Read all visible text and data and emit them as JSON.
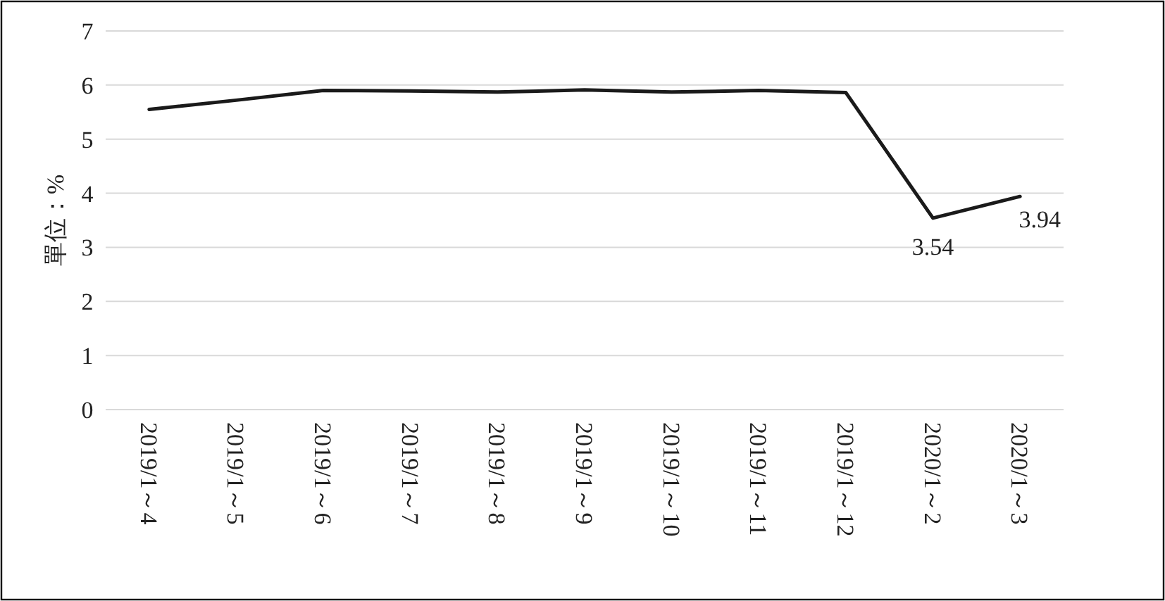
{
  "chart_data": {
    "type": "line",
    "ylabel": "單位：%",
    "categories": [
      "2019/1～4",
      "2019/1～5",
      "2019/1～6",
      "2019/1～7",
      "2019/1～8",
      "2019/1～9",
      "2019/1～10",
      "2019/1～11",
      "2019/1～12",
      "2020/1～2",
      "2020/1～3"
    ],
    "series": [
      {
        "color": "#1a1a1a",
        "values": [
          5.55,
          5.72,
          5.9,
          5.89,
          5.87,
          5.91,
          5.87,
          5.9,
          5.86,
          3.54,
          3.94
        ],
        "value_labels": [
          null,
          null,
          null,
          null,
          null,
          null,
          null,
          null,
          null,
          "3.54",
          "3.94"
        ]
      }
    ],
    "ylim": [
      0,
      7
    ],
    "yticks": [
      0,
      1,
      2,
      3,
      4,
      5,
      6,
      7
    ],
    "grid": "y",
    "marker": "none",
    "line_style": "solid"
  }
}
